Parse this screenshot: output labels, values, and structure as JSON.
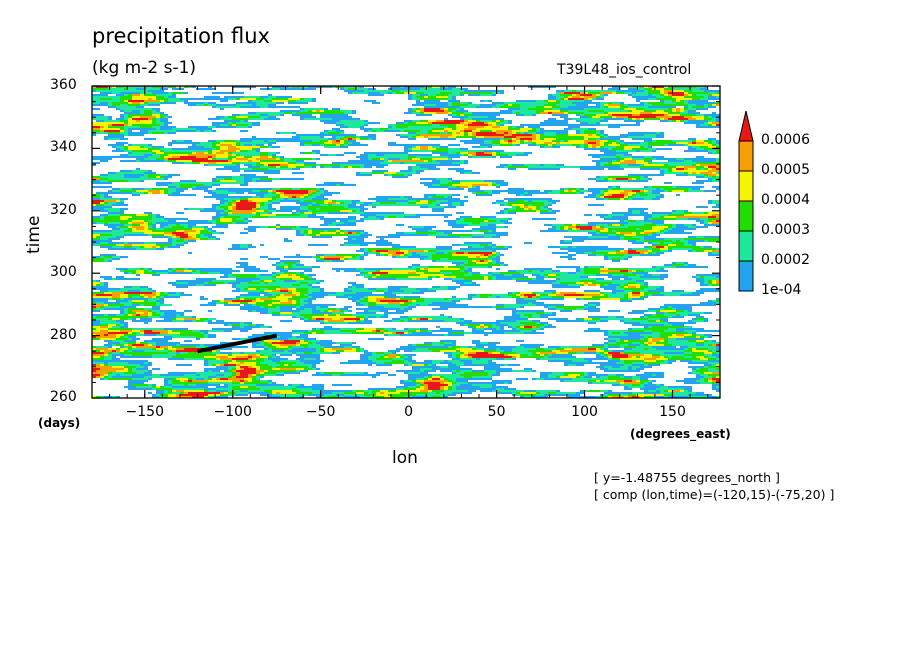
{
  "chart_data": {
    "type": "heatmap",
    "title": "precipitation flux",
    "units": "(kg m-2 s-1)",
    "run_label": "T39L48_ios_control",
    "xlabel": "lon",
    "xunits": "(degrees_east)",
    "ylabel": "time",
    "yunits": "(days)",
    "xlim": [
      -180,
      177
    ],
    "ylim": [
      260,
      360
    ],
    "xticks": [
      -150,
      -100,
      -50,
      0,
      50,
      100,
      150
    ],
    "yticks": [
      260,
      280,
      300,
      320,
      340,
      360
    ],
    "colorbar": {
      "levels": [
        "1e-04",
        "0.0002",
        "0.0003",
        "0.0004",
        "0.0005",
        "0.0006"
      ],
      "colors": [
        "#22a4ee",
        "#1ee89b",
        "#22dd00",
        "#f5f500",
        "#f5a000",
        "#e81818"
      ],
      "extend": "max"
    },
    "composite_segment": {
      "lon": [
        -120,
        -75
      ],
      "time": [
        275,
        280
      ]
    },
    "annotations": [
      "[ y=-1.48755 degrees_north ]",
      "[ comp (lon,time)=(-120,15)-(-75,20) ]"
    ]
  }
}
